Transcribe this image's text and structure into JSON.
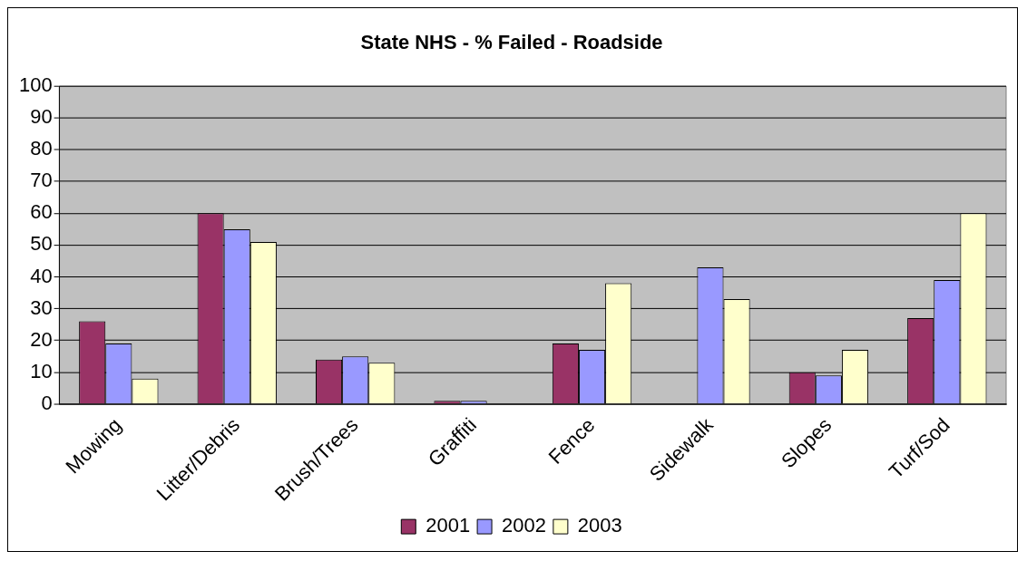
{
  "chart_data": {
    "type": "bar",
    "title": "State NHS - % Failed - Roadside",
    "categories": [
      "Mowing",
      "Litter/Debris",
      "Brush/Trees",
      "Graffiti",
      "Fence",
      "Sidewalk",
      "Slopes",
      "Turf/Sod"
    ],
    "series": [
      {
        "name": "2001",
        "color": "#993366",
        "values": [
          26,
          60,
          14,
          1,
          19,
          0,
          10,
          27
        ]
      },
      {
        "name": "2002",
        "color": "#9999ff",
        "values": [
          19,
          55,
          15,
          1,
          17,
          43,
          9,
          39
        ]
      },
      {
        "name": "2003",
        "color": "#ffffcc",
        "values": [
          8,
          51,
          13,
          0,
          38,
          33,
          17,
          60
        ]
      }
    ],
    "ylim": [
      0,
      100
    ],
    "yticks": [
      0,
      10,
      20,
      30,
      40,
      50,
      60,
      70,
      80,
      90,
      100
    ],
    "grid": "y",
    "legend": "bottom"
  }
}
